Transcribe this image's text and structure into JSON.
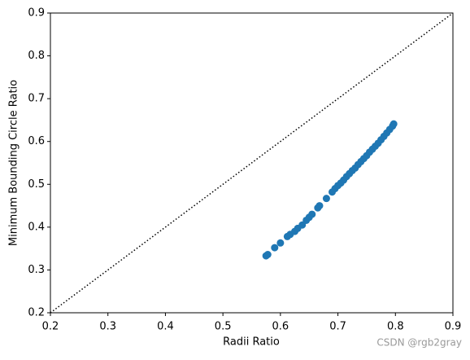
{
  "chart_data": {
    "type": "scatter",
    "xlabel": "Radii Ratio",
    "ylabel": "Minimum Bounding Circle Ratio",
    "watermark": "CSDN @rgb2gray",
    "xlim": [
      0.2,
      0.9
    ],
    "ylim": [
      0.2,
      0.9
    ],
    "xticks": [
      0.2,
      0.3,
      0.4,
      0.5,
      0.6,
      0.7,
      0.8,
      0.9
    ],
    "yticks": [
      0.2,
      0.3,
      0.4,
      0.5,
      0.6,
      0.7,
      0.8,
      0.9
    ],
    "color": "#1f77b4",
    "x": [
      0.575,
      0.578,
      0.59,
      0.6,
      0.612,
      0.617,
      0.625,
      0.63,
      0.638,
      0.645,
      0.65,
      0.655,
      0.665,
      0.668,
      0.68,
      0.69,
      0.695,
      0.7,
      0.705,
      0.71,
      0.715,
      0.72,
      0.725,
      0.73,
      0.735,
      0.74,
      0.745,
      0.75,
      0.755,
      0.76,
      0.765,
      0.77,
      0.775,
      0.78,
      0.785,
      0.79,
      0.795,
      0.797
    ],
    "values": [
      0.333,
      0.336,
      0.352,
      0.363,
      0.378,
      0.383,
      0.39,
      0.397,
      0.405,
      0.416,
      0.423,
      0.43,
      0.445,
      0.45,
      0.467,
      0.482,
      0.49,
      0.497,
      0.503,
      0.51,
      0.518,
      0.525,
      0.532,
      0.538,
      0.546,
      0.553,
      0.56,
      0.567,
      0.575,
      0.582,
      0.589,
      0.596,
      0.604,
      0.612,
      0.62,
      0.628,
      0.636,
      0.641
    ],
    "reference_line": {
      "x": [
        0.2,
        0.9
      ],
      "y": [
        0.2,
        0.9
      ],
      "color": "#000000",
      "style": "dotted"
    }
  }
}
